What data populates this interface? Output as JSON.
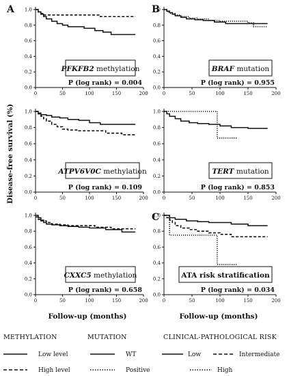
{
  "chart_data": [
    {
      "type": "line",
      "panel": "A",
      "label_italic": "PFKFB2",
      "label_rest": " methylation",
      "p_text": "P (log rank) = 0.004",
      "xlim": [
        0,
        200
      ],
      "ylim": [
        0,
        1.0
      ],
      "x_ticks": [
        0,
        50,
        100,
        150,
        200
      ],
      "y_ticks": [
        0.0,
        0.2,
        0.4,
        0.6,
        0.8,
        1.0
      ],
      "series": [
        {
          "style": "solid",
          "x": [
            0,
            5,
            10,
            15,
            20,
            30,
            40,
            50,
            60,
            75,
            90,
            100,
            110,
            125,
            140,
            160,
            185
          ],
          "y": [
            1.0,
            0.97,
            0.94,
            0.91,
            0.88,
            0.85,
            0.82,
            0.8,
            0.78,
            0.78,
            0.76,
            0.76,
            0.73,
            0.71,
            0.68,
            0.68,
            0.68
          ]
        },
        {
          "style": "dashed",
          "x": [
            0,
            5,
            10,
            15,
            25,
            40,
            60,
            100,
            120,
            150,
            185
          ],
          "y": [
            1.0,
            0.97,
            0.95,
            0.93,
            0.93,
            0.93,
            0.93,
            0.93,
            0.91,
            0.91,
            0.91
          ]
        }
      ]
    },
    {
      "type": "line",
      "panel": "B",
      "label_italic": "BRAF",
      "label_rest": " mutation",
      "p_text": "P (log rank) = 0.955",
      "xlim": [
        0,
        200
      ],
      "ylim": [
        0,
        1.0
      ],
      "x_ticks": [
        0,
        50,
        100,
        150,
        200
      ],
      "y_ticks": [
        0.0,
        0.2,
        0.4,
        0.6,
        0.8,
        1.0
      ],
      "series": [
        {
          "style": "solid",
          "x": [
            0,
            5,
            10,
            15,
            20,
            30,
            40,
            55,
            70,
            90,
            110,
            140,
            185
          ],
          "y": [
            1.0,
            0.98,
            0.96,
            0.94,
            0.92,
            0.9,
            0.88,
            0.87,
            0.86,
            0.84,
            0.82,
            0.82,
            0.82
          ]
        },
        {
          "style": "dotted",
          "x": [
            0,
            5,
            10,
            20,
            30,
            45,
            60,
            80,
            100,
            120,
            150,
            160,
            185
          ],
          "y": [
            1.0,
            0.97,
            0.95,
            0.93,
            0.91,
            0.89,
            0.88,
            0.86,
            0.85,
            0.85,
            0.83,
            0.78,
            0.78
          ]
        }
      ]
    },
    {
      "type": "line",
      "panel": "",
      "label_italic": "ATPV6V0C",
      "label_rest": " methylation",
      "p_text": "P (log rank) = 0.109",
      "xlim": [
        0,
        200
      ],
      "ylim": [
        0,
        1.0
      ],
      "x_ticks": [
        0,
        50,
        100,
        150,
        200
      ],
      "y_ticks": [
        0.0,
        0.2,
        0.4,
        0.6,
        0.8,
        1.0
      ],
      "series": [
        {
          "style": "solid",
          "x": [
            0,
            5,
            10,
            20,
            30,
            45,
            60,
            80,
            100,
            120,
            150,
            185
          ],
          "y": [
            1.0,
            0.98,
            0.96,
            0.95,
            0.93,
            0.92,
            0.9,
            0.89,
            0.86,
            0.84,
            0.84,
            0.84
          ]
        },
        {
          "style": "dashed",
          "x": [
            0,
            5,
            10,
            15,
            20,
            30,
            40,
            50,
            60,
            80,
            100,
            130,
            160,
            185
          ],
          "y": [
            1.0,
            0.97,
            0.94,
            0.91,
            0.88,
            0.84,
            0.81,
            0.78,
            0.77,
            0.76,
            0.76,
            0.73,
            0.71,
            0.71
          ]
        }
      ]
    },
    {
      "type": "line",
      "panel": "",
      "label_italic": "TERT",
      "label_rest": " mutation",
      "p_text": "P (log rank) = 0.853",
      "xlim": [
        0,
        200
      ],
      "ylim": [
        0,
        1.0
      ],
      "x_ticks": [
        0,
        50,
        100,
        150,
        200
      ],
      "y_ticks": [
        0.0,
        0.2,
        0.4,
        0.6,
        0.8,
        1.0
      ],
      "series": [
        {
          "style": "solid",
          "x": [
            0,
            5,
            10,
            20,
            30,
            45,
            60,
            80,
            100,
            120,
            150,
            185
          ],
          "y": [
            1.0,
            0.97,
            0.94,
            0.91,
            0.88,
            0.86,
            0.85,
            0.84,
            0.82,
            0.8,
            0.79,
            0.79
          ]
        },
        {
          "style": "dotted",
          "x": [
            0,
            95,
            95,
            130
          ],
          "y": [
            1.0,
            1.0,
            0.67,
            0.67
          ]
        }
      ]
    },
    {
      "type": "line",
      "panel": "",
      "label_italic": "CXXC5",
      "label_rest": " methylation",
      "p_text": "P (log rank) = 0.658",
      "xlim": [
        0,
        200
      ],
      "ylim": [
        0,
        1.0
      ],
      "x_ticks": [
        0,
        50,
        100,
        150,
        200
      ],
      "y_ticks": [
        0.0,
        0.2,
        0.4,
        0.6,
        0.8,
        1.0
      ],
      "series": [
        {
          "style": "solid",
          "x": [
            0,
            5,
            10,
            15,
            20,
            30,
            45,
            60,
            80,
            100,
            130,
            160,
            185
          ],
          "y": [
            1.0,
            0.97,
            0.94,
            0.91,
            0.89,
            0.88,
            0.87,
            0.86,
            0.85,
            0.84,
            0.82,
            0.79,
            0.79
          ]
        },
        {
          "style": "dashed",
          "x": [
            0,
            5,
            10,
            20,
            30,
            45,
            60,
            80,
            110,
            140,
            185
          ],
          "y": [
            0.98,
            0.95,
            0.93,
            0.91,
            0.89,
            0.88,
            0.87,
            0.87,
            0.85,
            0.83,
            0.83
          ]
        }
      ]
    },
    {
      "type": "line",
      "panel": "C",
      "label_italic": "",
      "label_rest": "ATA risk stratification",
      "p_text": "P (log rank) = 0.034",
      "xlim": [
        0,
        200
      ],
      "ylim": [
        0,
        1.0
      ],
      "x_ticks": [
        0,
        50,
        100,
        150,
        200
      ],
      "y_ticks": [
        0.0,
        0.2,
        0.4,
        0.6,
        0.8,
        1.0
      ],
      "series": [
        {
          "style": "solid",
          "x": [
            0,
            10,
            20,
            40,
            60,
            80,
            100,
            120,
            150,
            185
          ],
          "y": [
            1.0,
            0.97,
            0.95,
            0.93,
            0.92,
            0.91,
            0.91,
            0.89,
            0.87,
            0.87
          ]
        },
        {
          "style": "dashed",
          "x": [
            0,
            5,
            10,
            15,
            20,
            30,
            45,
            60,
            80,
            100,
            120,
            150,
            185
          ],
          "y": [
            1.0,
            0.97,
            0.94,
            0.91,
            0.87,
            0.84,
            0.82,
            0.8,
            0.78,
            0.76,
            0.73,
            0.73,
            0.73
          ]
        },
        {
          "style": "dotted",
          "x": [
            0,
            10,
            10,
            90,
            95,
            95,
            130
          ],
          "y": [
            1.0,
            1.0,
            0.75,
            0.75,
            0.75,
            0.38,
            0.38
          ]
        }
      ]
    }
  ],
  "axes": {
    "y_title": "Disease-free survival (%)",
    "x_title": "Follow-up (months)"
  },
  "legend": {
    "methylation": {
      "heading": "METHYLATION",
      "items": [
        {
          "label": "Low level",
          "style": "solid"
        },
        {
          "label": "High level",
          "style": "dashed"
        }
      ]
    },
    "mutation": {
      "heading": "MUTATION",
      "items": [
        {
          "label": "WT",
          "style": "solid"
        },
        {
          "label": "Positive",
          "style": "dotted"
        }
      ]
    },
    "risk": {
      "heading": "CLINICAL-PATHOLOGICAL RISK",
      "items": [
        {
          "label": "Low",
          "style": "solid"
        },
        {
          "label": "Intermediate",
          "style": "dashed"
        },
        {
          "label": "High",
          "style": "dotted"
        }
      ]
    }
  }
}
